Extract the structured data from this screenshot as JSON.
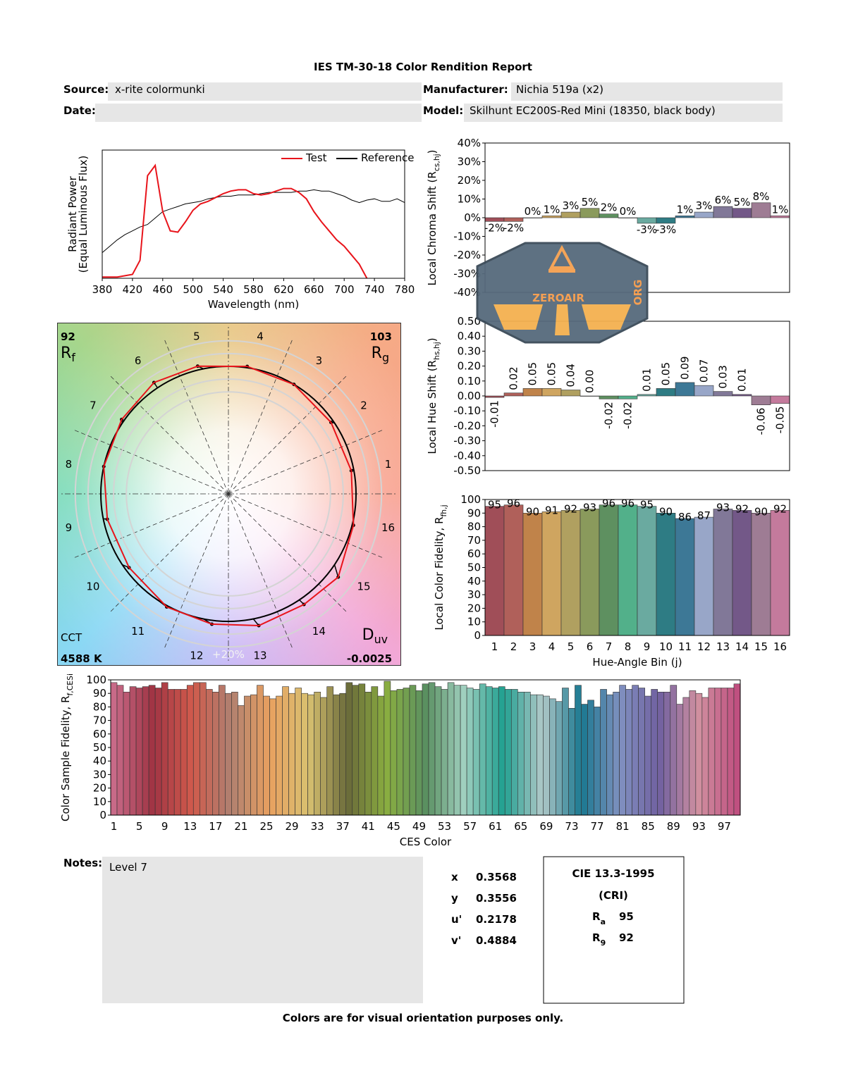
{
  "header": {
    "title": "IES TM-30-18 Color Rendition Report",
    "source_label": "Source:",
    "source": "x-rite colormunki",
    "manufacturer_label": "Manufacturer:",
    "manufacturer": "Nichia 519a (x2)",
    "date_label": "Date:",
    "model_label": "Model:",
    "model": "Skilhunt EC200S-Red Mini (18350, black body)"
  },
  "chart_data": [
    {
      "type": "line",
      "xlabel": "Wavelength (nm)",
      "ylabel": "Radiant Power",
      "ylabel_note": "(Equal Luminous Flux)",
      "legend": "upper right",
      "x": [
        380,
        390,
        400,
        410,
        420,
        430,
        440,
        450,
        460,
        470,
        480,
        490,
        500,
        510,
        520,
        530,
        540,
        550,
        560,
        570,
        580,
        590,
        600,
        610,
        620,
        630,
        640,
        650,
        660,
        670,
        680,
        690,
        700,
        710,
        720,
        730,
        740,
        750,
        760,
        770,
        780
      ],
      "xlim": [
        380,
        780
      ],
      "xticks": [
        380,
        420,
        460,
        500,
        540,
        580,
        620,
        660,
        700,
        740,
        780
      ],
      "ylim": [
        0,
        1
      ],
      "series": [
        {
          "name": "Test",
          "color": "#e8141b",
          "values": [
            0.01,
            0.01,
            0.01,
            0.02,
            0.03,
            0.14,
            0.8,
            0.88,
            0.52,
            0.37,
            0.36,
            0.44,
            0.53,
            0.58,
            0.6,
            0.63,
            0.66,
            0.68,
            0.69,
            0.69,
            0.66,
            0.65,
            0.66,
            0.68,
            0.7,
            0.7,
            0.67,
            0.62,
            0.52,
            0.44,
            0.37,
            0.3,
            0.25,
            0.18,
            0.11,
            0,
            null,
            null,
            null,
            null,
            null
          ]
        },
        {
          "name": "Reference",
          "color": "#000000",
          "values": [
            0.2,
            0.25,
            0.3,
            0.34,
            0.37,
            0.4,
            0.42,
            0.47,
            0.52,
            0.54,
            0.56,
            0.58,
            0.59,
            0.6,
            0.62,
            0.63,
            0.64,
            0.64,
            0.65,
            0.65,
            0.65,
            0.66,
            0.67,
            0.67,
            0.67,
            0.67,
            0.68,
            0.68,
            0.69,
            0.68,
            0.68,
            0.66,
            0.64,
            0.61,
            0.59,
            0.61,
            0.62,
            0.6,
            0.6,
            0.62,
            0.59
          ]
        }
      ]
    },
    {
      "type": "polar",
      "categories": [
        1,
        2,
        3,
        4,
        5,
        6,
        7,
        8,
        9,
        10,
        11,
        12,
        13,
        14,
        15,
        16
      ],
      "rf": 92,
      "rf_label": [
        "R",
        "f"
      ],
      "rg": 103,
      "rg_label": [
        "R",
        "g"
      ],
      "cct_label": "CCT",
      "cct": "4588 K",
      "duv_label": [
        "D",
        "uv"
      ],
      "duv": -0.0025,
      "ring_label": "+20%",
      "test_color": "#e8141b",
      "reference_color": "#000000"
    },
    {
      "type": "bar",
      "ylabel": [
        "Local Chroma Shift (R",
        "cs,hj",
        ")"
      ],
      "values": [
        -2,
        -2,
        0,
        1,
        3,
        5,
        2,
        0,
        -3,
        -3,
        1,
        3,
        6,
        5,
        8,
        1
      ],
      "value_labels": [
        "-2%",
        "-2%",
        "0%",
        "1%",
        "3%",
        "5%",
        "2%",
        "0%",
        "-3%",
        "-3%",
        "1%",
        "3%",
        "6%",
        "5%",
        "8%",
        "1%"
      ],
      "ylim": [
        -40,
        40
      ],
      "yticks": [
        {
          "value": -40,
          "label": "-40%"
        },
        {
          "value": -30,
          "label": "-30%"
        },
        {
          "value": -20,
          "label": "-20%"
        },
        {
          "value": -10,
          "label": "-10%"
        },
        {
          "value": 0,
          "label": "0%"
        },
        {
          "value": 10,
          "label": "10%"
        },
        {
          "value": 20,
          "label": "20%"
        },
        {
          "value": 30,
          "label": "30%"
        },
        {
          "value": 40,
          "label": "40%"
        }
      ],
      "colors": [
        "#a04e58",
        "#b0605a",
        "#c0834a",
        "#cfa560",
        "#b0a060",
        "#8a9a5c",
        "#5e9060",
        "#52b08a",
        "#6aaaa0",
        "#2e7c84",
        "#3d7896",
        "#98a6c8",
        "#817898",
        "#735888",
        "#9e7c94",
        "#c47a9c"
      ]
    },
    {
      "type": "bar",
      "ylabel": [
        "Local Hue Shift (R",
        "hs,hj",
        ")"
      ],
      "value_label_orientation": "vertical",
      "values": [
        -0.01,
        0.02,
        0.05,
        0.05,
        0.04,
        0,
        -0.02,
        -0.02,
        0.01,
        0.05,
        0.09,
        0.07,
        0.03,
        0.01,
        -0.06,
        -0.05
      ],
      "value_labels": [
        "-0.01",
        "0.02",
        "0.05",
        "0.05",
        "0.04",
        "0.00",
        "-0.02",
        "-0.02",
        "0.01",
        "0.05",
        "0.09",
        "0.07",
        "0.03",
        "0.01",
        "-0.06",
        "-0.05"
      ],
      "ylim": [
        -0.5,
        0.5
      ],
      "yticks": [
        {
          "value": -0.5,
          "label": "-0.50"
        },
        {
          "value": -0.4,
          "label": "-0.40"
        },
        {
          "value": -0.3,
          "label": "-0.30"
        },
        {
          "value": -0.2,
          "label": "-0.20"
        },
        {
          "value": -0.1,
          "label": "-0.10"
        },
        {
          "value": 0,
          "label": "0.00"
        },
        {
          "value": 0.1,
          "label": "0.10"
        },
        {
          "value": 0.2,
          "label": "0.20"
        },
        {
          "value": 0.3,
          "label": "0.30"
        },
        {
          "value": 0.4,
          "label": "0.40"
        },
        {
          "value": 0.5,
          "label": "0.50"
        }
      ],
      "colors": [
        "#a04e58",
        "#b0605a",
        "#c0834a",
        "#cfa560",
        "#b0a060",
        "#8a9a5c",
        "#5e9060",
        "#52b08a",
        "#6aaaa0",
        "#2e7c84",
        "#3d7896",
        "#98a6c8",
        "#817898",
        "#735888",
        "#9e7c94",
        "#c47a9c"
      ]
    },
    {
      "type": "bar",
      "xlabel": "Hue-Angle Bin (j)",
      "ylabel": [
        "Local Color Fidelity, R",
        "fh,j"
      ],
      "categories": [
        1,
        2,
        3,
        4,
        5,
        6,
        7,
        8,
        9,
        10,
        11,
        12,
        13,
        14,
        15,
        16
      ],
      "values": [
        95,
        96,
        90,
        91,
        92,
        93,
        96,
        96,
        95,
        90,
        86,
        87,
        93,
        92,
        90,
        92
      ],
      "ylim": [
        0,
        100
      ],
      "yticks": [
        0,
        10,
        20,
        30,
        40,
        50,
        60,
        70,
        80,
        90,
        100
      ],
      "colors": [
        "#a04e58",
        "#b0605a",
        "#c0834a",
        "#cfa560",
        "#b0a060",
        "#8a9a5c",
        "#5e9060",
        "#52b08a",
        "#6aaaa0",
        "#2e7c84",
        "#3d7896",
        "#98a6c8",
        "#817898",
        "#735888",
        "#9e7c94",
        "#c47a9c"
      ]
    },
    {
      "type": "bar",
      "xlabel": "CES Color",
      "ylabel": [
        "Color Sample Fidelity, R",
        "f,CESi"
      ],
      "categories": [
        1,
        null,
        null,
        null,
        5,
        null,
        null,
        null,
        9,
        null,
        null,
        null,
        13,
        null,
        null,
        null,
        17,
        null,
        null,
        null,
        21,
        null,
        null,
        null,
        25,
        null,
        null,
        null,
        29,
        null,
        null,
        null,
        33,
        null,
        null,
        null,
        37,
        null,
        null,
        null,
        41,
        null,
        null,
        null,
        45,
        null,
        null,
        null,
        49,
        null,
        null,
        null,
        53,
        null,
        null,
        null,
        57,
        null,
        null,
        null,
        61,
        null,
        null,
        null,
        65,
        null,
        null,
        null,
        69,
        null,
        null,
        null,
        73,
        null,
        null,
        null,
        77,
        null,
        null,
        null,
        81,
        null,
        null,
        null,
        85,
        null,
        null,
        null,
        89,
        null,
        null,
        null,
        93,
        null,
        null,
        null,
        97,
        null,
        null
      ],
      "values": [
        98,
        96,
        91,
        95,
        94,
        95,
        96,
        94,
        98,
        93,
        93,
        93,
        96,
        98,
        98,
        93,
        91,
        96,
        90,
        91,
        81,
        88,
        89,
        96,
        88,
        86,
        88,
        95,
        90,
        94,
        90,
        89,
        91,
        87,
        95,
        89,
        90,
        98,
        96,
        97,
        91,
        95,
        88,
        99,
        92,
        93,
        94,
        96,
        92,
        97,
        98,
        95,
        93,
        98,
        96,
        96,
        94,
        93,
        97,
        95,
        94,
        95,
        93,
        93,
        91,
        91,
        89,
        89,
        88,
        86,
        84,
        94,
        79,
        96,
        82,
        85,
        80,
        93,
        89,
        91,
        96,
        93,
        96,
        94,
        88,
        93,
        91,
        91,
        96,
        82,
        87,
        92,
        90,
        87,
        94,
        94,
        94,
        94,
        97
      ],
      "ylim": [
        0,
        100
      ],
      "yticks": [
        0,
        10,
        20,
        30,
        40,
        50,
        60,
        70,
        80,
        90,
        100
      ],
      "palette": [
        "#c86a88",
        "#a03444",
        "#d05a4c",
        "#b08070",
        "#e8a060",
        "#d8c070",
        "#6a6a3a",
        "#8aae40",
        "#5a9060",
        "#a0d0c0",
        "#20a090",
        "#b0c8c8",
        "#1a7890",
        "#8090c0",
        "#7060a0",
        "#d090a0",
        "#c05080"
      ]
    }
  ],
  "notes": {
    "label": "Notes:",
    "text": "Level 7"
  },
  "chromaticity": [
    [
      "x",
      0.3568
    ],
    [
      "y",
      0.3556
    ],
    [
      "u'",
      0.2178
    ],
    [
      "v'",
      0.4884
    ]
  ],
  "cri": {
    "title": "CIE 13.3-1995",
    "subtitle": "(CRI)",
    "rows": [
      {
        "symbol": [
          "R",
          "a"
        ],
        "value": 95
      },
      {
        "symbol": [
          "R",
          "9"
        ],
        "value": 92
      }
    ]
  },
  "footer": "Colors are for visual orientation purposes only.",
  "watermark": {
    "text": "ZEROAIR",
    "suffix": "ORG"
  }
}
